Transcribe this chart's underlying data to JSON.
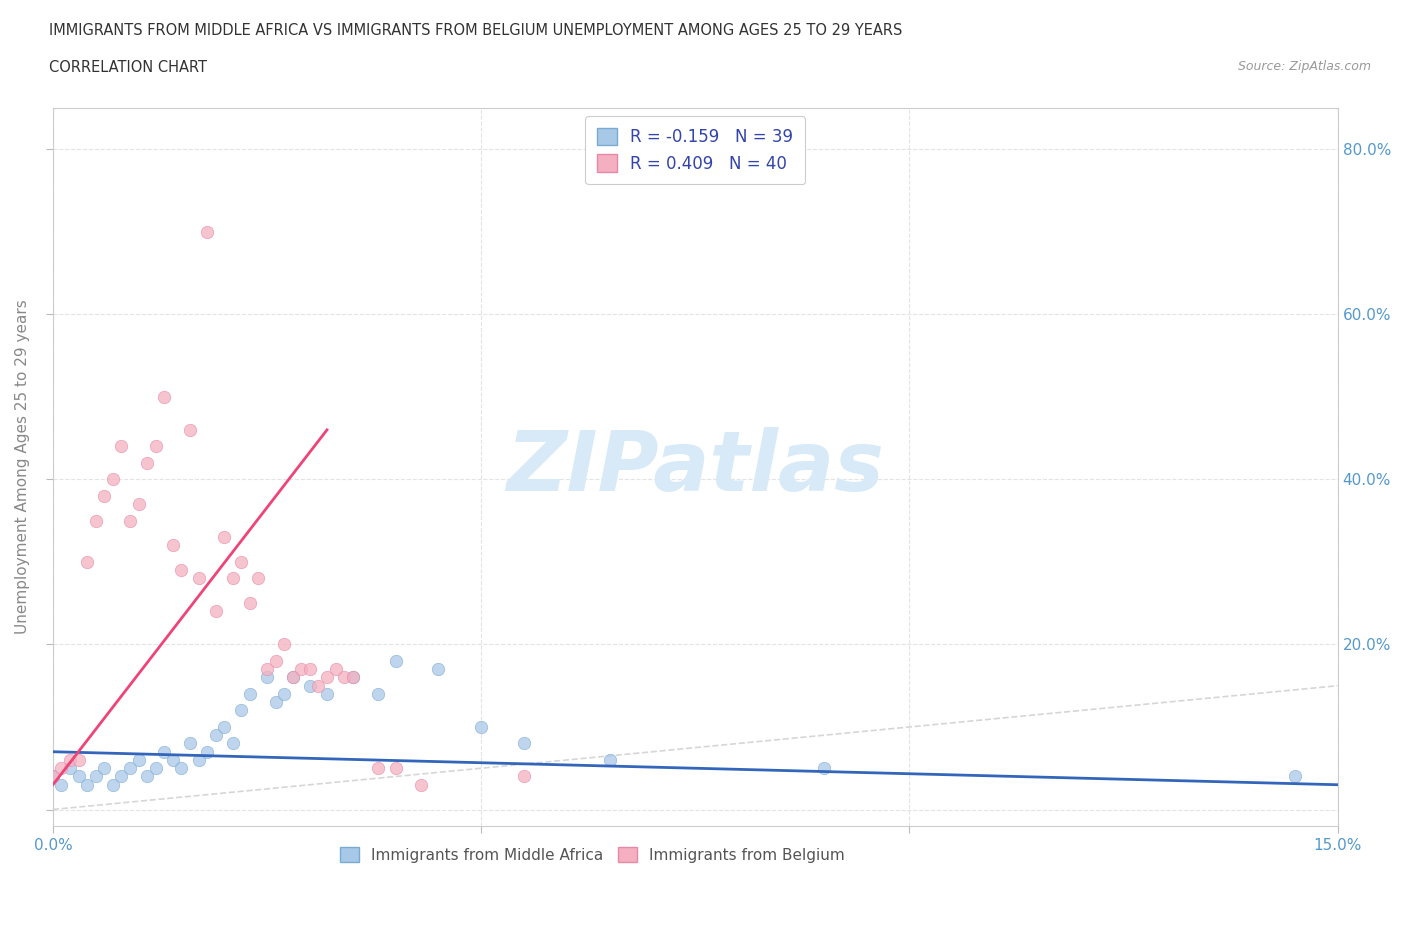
{
  "title_line1": "IMMIGRANTS FROM MIDDLE AFRICA VS IMMIGRANTS FROM BELGIUM UNEMPLOYMENT AMONG AGES 25 TO 29 YEARS",
  "title_line2": "CORRELATION CHART",
  "source": "Source: ZipAtlas.com",
  "ylabel": "Unemployment Among Ages 25 to 29 years",
  "xlim": [
    0.0,
    0.15
  ],
  "ylim": [
    -0.02,
    0.85
  ],
  "blue_scatter_x": [
    0.0,
    0.001,
    0.002,
    0.003,
    0.004,
    0.005,
    0.006,
    0.007,
    0.008,
    0.009,
    0.01,
    0.011,
    0.012,
    0.013,
    0.014,
    0.015,
    0.016,
    0.017,
    0.018,
    0.019,
    0.02,
    0.021,
    0.022,
    0.023,
    0.025,
    0.026,
    0.027,
    0.028,
    0.03,
    0.032,
    0.035,
    0.038,
    0.04,
    0.045,
    0.05,
    0.055,
    0.065,
    0.09,
    0.145
  ],
  "blue_scatter_y": [
    0.04,
    0.03,
    0.05,
    0.04,
    0.03,
    0.04,
    0.05,
    0.03,
    0.04,
    0.05,
    0.06,
    0.04,
    0.05,
    0.07,
    0.06,
    0.05,
    0.08,
    0.06,
    0.07,
    0.09,
    0.1,
    0.08,
    0.12,
    0.14,
    0.16,
    0.13,
    0.14,
    0.16,
    0.15,
    0.14,
    0.16,
    0.14,
    0.18,
    0.17,
    0.1,
    0.08,
    0.06,
    0.05,
    0.04
  ],
  "pink_scatter_x": [
    0.0,
    0.001,
    0.002,
    0.003,
    0.004,
    0.005,
    0.006,
    0.007,
    0.008,
    0.009,
    0.01,
    0.011,
    0.012,
    0.013,
    0.014,
    0.015,
    0.016,
    0.017,
    0.018,
    0.019,
    0.02,
    0.021,
    0.022,
    0.023,
    0.024,
    0.025,
    0.026,
    0.027,
    0.028,
    0.029,
    0.03,
    0.031,
    0.032,
    0.033,
    0.034,
    0.035,
    0.038,
    0.04,
    0.043,
    0.055
  ],
  "pink_scatter_y": [
    0.04,
    0.05,
    0.06,
    0.06,
    0.3,
    0.35,
    0.38,
    0.4,
    0.44,
    0.35,
    0.37,
    0.42,
    0.44,
    0.5,
    0.32,
    0.29,
    0.46,
    0.28,
    0.7,
    0.24,
    0.33,
    0.28,
    0.3,
    0.25,
    0.28,
    0.17,
    0.18,
    0.2,
    0.16,
    0.17,
    0.17,
    0.15,
    0.16,
    0.17,
    0.16,
    0.16,
    0.05,
    0.05,
    0.03,
    0.04
  ],
  "blue_color": "#a8c8e8",
  "blue_edge_color": "#7aaad0",
  "pink_color": "#f4b0c0",
  "pink_edge_color": "#e888a8",
  "blue_line_color": "#3366bb",
  "pink_line_color": "#ee4477",
  "diagonal_color": "#cccccc",
  "watermark_color": "#d8eaf8",
  "background_color": "#ffffff",
  "grid_color": "#e0e0e0",
  "tick_label_color": "#5599cc",
  "ylabel_color": "#888888",
  "title_color": "#333333",
  "source_color": "#999999",
  "legend_label_color": "#3344aa"
}
